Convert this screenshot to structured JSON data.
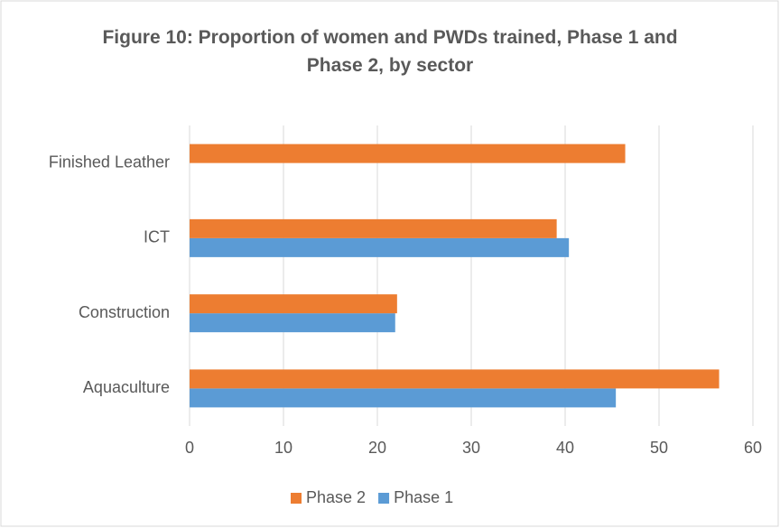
{
  "chart_data": {
    "type": "hbar",
    "title": "Figure 10: Proportion of women and PWDs trained, Phase 1 and Phase 2, by sector",
    "categories": [
      "Aquaculture",
      "Construction",
      "ICT",
      "Finished Leather"
    ],
    "series": [
      {
        "name": "Phase 1",
        "color": "#5b9bd5",
        "values": [
          45.4,
          21.9,
          40.4,
          null
        ]
      },
      {
        "name": "Phase 2",
        "color": "#ed7d31",
        "values": [
          56.4,
          22.1,
          39.1,
          46.4
        ]
      }
    ],
    "xlim": [
      0,
      60
    ],
    "xticks": [
      0,
      10,
      20,
      30,
      40,
      50,
      60
    ],
    "grid": true,
    "legend": "bottom"
  }
}
